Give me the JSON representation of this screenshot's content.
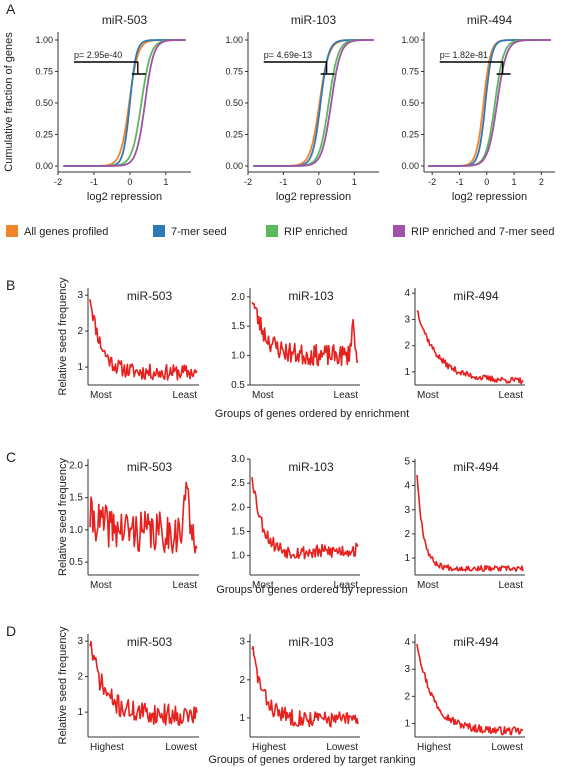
{
  "colors": {
    "all_genes": "#f28529",
    "seed7": "#2f79b4",
    "rip": "#5cb85c",
    "rip_seed": "#9f52a8",
    "trace": "#e8211f",
    "axis": "#333333"
  },
  "panel_labels": [
    "A",
    "B",
    "C",
    "D"
  ],
  "legend": [
    {
      "label": "All genes profiled",
      "color": "#f28529"
    },
    {
      "label": "7-mer seed",
      "color": "#2f79b4"
    },
    {
      "label": "RIP enriched",
      "color": "#5cb85c"
    },
    {
      "label": "RIP enriched and 7-mer seed",
      "color": "#9f52a8"
    }
  ],
  "row_titles": {
    "B": "Groups of genes ordered by enrichment",
    "C": "Groups of genes ordered by repression",
    "D": "Groups of genes ordered by target ranking"
  },
  "chart_data": [
    {
      "id": "A1",
      "type": "line",
      "title": "miR-503",
      "xlabel": "log2 repression",
      "ylabel": "Cumulative fraction of genes",
      "xlim": [
        -2,
        1.7
      ],
      "ylim": [
        0,
        1
      ],
      "xticks": [
        -2,
        -1,
        0,
        1
      ],
      "yticks": [
        "0.00",
        "0.25",
        "0.50",
        "0.75",
        "1.00"
      ],
      "pvalue": "p= 2.95e-40",
      "series": [
        {
          "name": "All genes profiled",
          "center": -0.02,
          "scale": 0.12
        },
        {
          "name": "7-mer seed",
          "center": 0.0,
          "scale": 0.09
        },
        {
          "name": "RIP enriched",
          "center": 0.32,
          "scale": 0.13
        },
        {
          "name": "RIP enriched and 7-mer seed",
          "center": 0.42,
          "scale": 0.12
        }
      ]
    },
    {
      "id": "A2",
      "type": "line",
      "title": "miR-103",
      "xlabel": "log2 repression",
      "ylabel": "",
      "xlim": [
        -2,
        1.7
      ],
      "ylim": [
        0,
        1
      ],
      "xticks": [
        -2,
        -1,
        0,
        1
      ],
      "yticks": [
        "0.00",
        "0.25",
        "0.50",
        "0.75",
        "1.00"
      ],
      "pvalue": "p= 4.69e-13",
      "series": [
        {
          "name": "All genes profiled",
          "center": 0.02,
          "scale": 0.13
        },
        {
          "name": "7-mer seed",
          "center": 0.05,
          "scale": 0.11
        },
        {
          "name": "RIP enriched",
          "center": 0.28,
          "scale": 0.13
        },
        {
          "name": "RIP enriched and 7-mer seed",
          "center": 0.35,
          "scale": 0.13
        }
      ]
    },
    {
      "id": "A3",
      "type": "line",
      "title": "miR-494",
      "xlabel": "log2 repression",
      "ylabel": "",
      "xlim": [
        -2.3,
        2.5
      ],
      "ylim": [
        0,
        1
      ],
      "xticks": [
        -2,
        -1,
        0,
        1,
        2
      ],
      "yticks": [
        "0.00",
        "0.25",
        "0.50",
        "0.75",
        "1.00"
      ],
      "pvalue": "p= 1.82e-81",
      "series": [
        {
          "name": "All genes profiled",
          "center": -0.12,
          "scale": 0.13
        },
        {
          "name": "7-mer seed",
          "center": -0.05,
          "scale": 0.12
        },
        {
          "name": "RIP enriched",
          "center": 0.3,
          "scale": 0.16
        },
        {
          "name": "RIP enriched and 7-mer seed",
          "center": 0.38,
          "scale": 0.17
        }
      ]
    },
    {
      "id": "B1",
      "type": "line",
      "title": "miR-503",
      "ylabel": "Relative seed frequency",
      "ylim": [
        0.5,
        3.2
      ],
      "yticks": [
        1,
        2,
        3
      ],
      "xticklabels": [
        "Most",
        "Least"
      ],
      "profile": {
        "start": 3.0,
        "floor": 0.85,
        "decay": 0.1,
        "noise": 0.22,
        "tail": 0.0,
        "spike_at": 0.0,
        "spike": 0.0,
        "seed": 11
      }
    },
    {
      "id": "B2",
      "type": "line",
      "title": "miR-103",
      "ylabel": "",
      "ylim": [
        0.5,
        2.15
      ],
      "yticks": [
        "0.5",
        "1.0",
        "1.5",
        "2.0"
      ],
      "xticklabels": [
        "Most",
        "Least"
      ],
      "profile": {
        "start": 2.0,
        "floor": 1.0,
        "decay": 0.12,
        "noise": 0.18,
        "tail": 0.0,
        "spike_at": 0.95,
        "spike": 0.55,
        "seed": 23
      }
    },
    {
      "id": "B3",
      "type": "line",
      "title": "miR-494",
      "ylabel": "",
      "ylim": [
        0.5,
        4.2
      ],
      "yticks": [
        1,
        2,
        3,
        4
      ],
      "xticklabels": [
        "Most",
        "Least"
      ],
      "profile": {
        "start": 3.4,
        "floor": 0.75,
        "decay": 0.18,
        "noise": 0.12,
        "tail": -0.1,
        "spike_at": 0.0,
        "spike": 0.0,
        "seed": 37
      }
    },
    {
      "id": "C1",
      "type": "line",
      "title": "miR-503",
      "ylabel": "Relative seed frequency",
      "ylim": [
        0.3,
        2.1
      ],
      "yticks": [
        "0.5",
        "1.0",
        "1.5",
        "2.0"
      ],
      "xticklabels": [
        "Most",
        "Least"
      ],
      "profile": {
        "start": 1.2,
        "floor": 0.95,
        "decay": 0.2,
        "noise": 0.32,
        "tail": 0.0,
        "spike_at": 0.9,
        "spike": 0.9,
        "seed": 41
      }
    },
    {
      "id": "C2",
      "type": "line",
      "title": "miR-103",
      "ylabel": "",
      "ylim": [
        0.6,
        3.0
      ],
      "yticks": [
        "1.0",
        "1.5",
        "2.0",
        "2.5",
        "3.0"
      ],
      "xticklabels": [
        "Most",
        "Least"
      ],
      "profile": {
        "start": 2.7,
        "floor": 1.0,
        "decay": 0.1,
        "noise": 0.15,
        "tail": 0.12,
        "spike_at": 0.0,
        "spike": 0.0,
        "seed": 53
      }
    },
    {
      "id": "C3",
      "type": "line",
      "title": "miR-494",
      "ylabel": "",
      "ylim": [
        0.3,
        5.1
      ],
      "yticks": [
        1,
        2,
        3,
        4,
        5
      ],
      "xticklabels": [
        "Most",
        "Least"
      ],
      "profile": {
        "start": 4.5,
        "floor": 0.6,
        "decay": 0.06,
        "noise": 0.12,
        "tail": -0.05,
        "spike_at": 0.0,
        "spike": 0.0,
        "seed": 67
      }
    },
    {
      "id": "D1",
      "type": "line",
      "title": "miR-503",
      "ylabel": "Relative seed frequency",
      "ylim": [
        0.3,
        3.2
      ],
      "yticks": [
        1,
        2,
        3
      ],
      "xticklabels": [
        "Highest",
        "Lowest"
      ],
      "profile": {
        "start": 3.0,
        "floor": 1.0,
        "decay": 0.12,
        "noise": 0.3,
        "tail": -0.1,
        "spike_at": 0.0,
        "spike": 0.0,
        "seed": 71
      }
    },
    {
      "id": "D2",
      "type": "line",
      "title": "miR-103",
      "ylabel": "",
      "ylim": [
        0.5,
        3.2
      ],
      "yticks": [
        1,
        2,
        3
      ],
      "xticklabels": [
        "Highest",
        "Lowest"
      ],
      "profile": {
        "start": 2.9,
        "floor": 1.0,
        "decay": 0.1,
        "noise": 0.22,
        "tail": -0.05,
        "spike_at": 0.0,
        "spike": 0.0,
        "seed": 83
      }
    },
    {
      "id": "D3",
      "type": "line",
      "title": "miR-494",
      "ylabel": "",
      "ylim": [
        0.5,
        4.3
      ],
      "yticks": [
        1,
        2,
        3,
        4
      ],
      "xticklabels": [
        "Highest",
        "Lowest"
      ],
      "profile": {
        "start": 4.0,
        "floor": 0.8,
        "decay": 0.15,
        "noise": 0.15,
        "tail": -0.1,
        "spike_at": 0.0,
        "spike": 0.0,
        "seed": 97
      }
    }
  ]
}
